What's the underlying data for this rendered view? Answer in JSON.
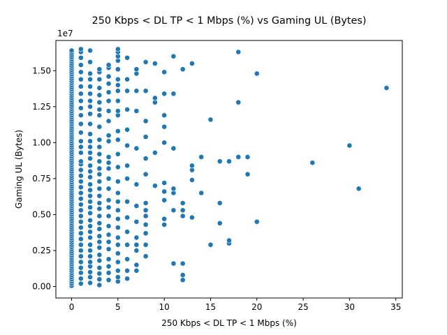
{
  "chart_data": {
    "type": "scatter",
    "title": "250 Kbps < DL TP < 1 Mbps (%) vs Gaming UL (Bytes)",
    "xlabel": "250 Kbps < DL TP < 1 Mbps (%)",
    "ylabel": "Gaming UL (Bytes)",
    "y_offset_label": "1e7",
    "xlim": [
      -1.7,
      35.7
    ],
    "ylim": [
      -800000.0,
      17100000.0
    ],
    "x_ticks": [
      0,
      5,
      10,
      15,
      20,
      25,
      30,
      35
    ],
    "x_tick_labels": [
      "0",
      "5",
      "10",
      "15",
      "20",
      "25",
      "30",
      "35"
    ],
    "y_ticks": [
      0,
      2500000,
      5000000,
      7500000,
      10000000,
      12500000,
      15000000
    ],
    "y_tick_labels": [
      "0.00",
      "0.25",
      "0.50",
      "0.75",
      "1.00",
      "1.25",
      "1.50"
    ],
    "grid": false,
    "point_color": "#1f77b4",
    "points": [
      [
        0,
        50000
      ],
      [
        0,
        200000
      ],
      [
        0,
        350000
      ],
      [
        0,
        500000
      ],
      [
        0,
        650000
      ],
      [
        0,
        800000
      ],
      [
        0,
        950000
      ],
      [
        0,
        1100000
      ],
      [
        0,
        1250000
      ],
      [
        0,
        1400000
      ],
      [
        0,
        1550000
      ],
      [
        0,
        1700000
      ],
      [
        0,
        1850000
      ],
      [
        0,
        2000000
      ],
      [
        0,
        2150000
      ],
      [
        0,
        2300000
      ],
      [
        0,
        2450000
      ],
      [
        0,
        2600000
      ],
      [
        0,
        2750000
      ],
      [
        0,
        2900000
      ],
      [
        0,
        3050000
      ],
      [
        0,
        3200000
      ],
      [
        0,
        3350000
      ],
      [
        0,
        3500000
      ],
      [
        0,
        3650000
      ],
      [
        0,
        3800000
      ],
      [
        0,
        3950000
      ],
      [
        0,
        4100000
      ],
      [
        0,
        4250000
      ],
      [
        0,
        4400000
      ],
      [
        0,
        4550000
      ],
      [
        0,
        4700000
      ],
      [
        0,
        4850000
      ],
      [
        0,
        5000000
      ],
      [
        0,
        5150000
      ],
      [
        0,
        5300000
      ],
      [
        0,
        5450000
      ],
      [
        0,
        5600000
      ],
      [
        0,
        5750000
      ],
      [
        0,
        5900000
      ],
      [
        0,
        6050000
      ],
      [
        0,
        6200000
      ],
      [
        0,
        6350000
      ],
      [
        0,
        6500000
      ],
      [
        0,
        6650000
      ],
      [
        0,
        6800000
      ],
      [
        0,
        6950000
      ],
      [
        0,
        7100000
      ],
      [
        0,
        7250000
      ],
      [
        0,
        7400000
      ],
      [
        0,
        7550000
      ],
      [
        0,
        7700000
      ],
      [
        0,
        7850000
      ],
      [
        0,
        8000000
      ],
      [
        0,
        8150000
      ],
      [
        0,
        8300000
      ],
      [
        0,
        8450000
      ],
      [
        0,
        8600000
      ],
      [
        0,
        8750000
      ],
      [
        0,
        8900000
      ],
      [
        0,
        9050000
      ],
      [
        0,
        9200000
      ],
      [
        0,
        9350000
      ],
      [
        0,
        9500000
      ],
      [
        0,
        9650000
      ],
      [
        0,
        9800000
      ],
      [
        0,
        9950000
      ],
      [
        0,
        10100000
      ],
      [
        0,
        10250000
      ],
      [
        0,
        10400000
      ],
      [
        0,
        10550000
      ],
      [
        0,
        10700000
      ],
      [
        0,
        10850000
      ],
      [
        0,
        11000000
      ],
      [
        0,
        11150000
      ],
      [
        0,
        11300000
      ],
      [
        0,
        11450000
      ],
      [
        0,
        11600000
      ],
      [
        0,
        11750000
      ],
      [
        0,
        11900000
      ],
      [
        0,
        12050000
      ],
      [
        0,
        12200000
      ],
      [
        0,
        12350000
      ],
      [
        0,
        12500000
      ],
      [
        0,
        12650000
      ],
      [
        0,
        12800000
      ],
      [
        0,
        12950000
      ],
      [
        0,
        13100000
      ],
      [
        0,
        13250000
      ],
      [
        0,
        13400000
      ],
      [
        0,
        13550000
      ],
      [
        0,
        13700000
      ],
      [
        0,
        13850000
      ],
      [
        0,
        14000000
      ],
      [
        0,
        14150000
      ],
      [
        0,
        14300000
      ],
      [
        0,
        14450000
      ],
      [
        0,
        14600000
      ],
      [
        0,
        14750000
      ],
      [
        0,
        14900000
      ],
      [
        0,
        15050000
      ],
      [
        0,
        15200000
      ],
      [
        0,
        15350000
      ],
      [
        0,
        15500000
      ],
      [
        0,
        15650000
      ],
      [
        0,
        15800000
      ],
      [
        0,
        15950000
      ],
      [
        0,
        16100000
      ],
      [
        0,
        16250000
      ],
      [
        0,
        16400000
      ],
      [
        1,
        200000
      ],
      [
        1,
        550000
      ],
      [
        1,
        950000
      ],
      [
        1,
        1300000
      ],
      [
        1,
        1700000
      ],
      [
        1,
        2100000
      ],
      [
        1,
        2500000
      ],
      [
        1,
        2900000
      ],
      [
        1,
        3300000
      ],
      [
        1,
        3700000
      ],
      [
        1,
        4100000
      ],
      [
        1,
        4500000
      ],
      [
        1,
        4900000
      ],
      [
        1,
        5300000
      ],
      [
        1,
        5700000
      ],
      [
        1,
        6100000
      ],
      [
        1,
        6500000
      ],
      [
        1,
        6900000
      ],
      [
        1,
        7300000
      ],
      [
        1,
        7700000
      ],
      [
        1,
        8100000
      ],
      [
        1,
        8500000
      ],
      [
        1,
        8700000
      ],
      [
        1,
        9300000
      ],
      [
        1,
        9700000
      ],
      [
        1,
        10100000
      ],
      [
        1,
        10700000
      ],
      [
        1,
        11300000
      ],
      [
        1,
        11900000
      ],
      [
        1,
        12400000
      ],
      [
        1,
        12900000
      ],
      [
        1,
        13400000
      ],
      [
        1,
        13900000
      ],
      [
        1,
        14400000
      ],
      [
        1,
        14900000
      ],
      [
        1,
        15400000
      ],
      [
        1,
        15900000
      ],
      [
        1,
        16300000
      ],
      [
        1,
        16500000
      ],
      [
        2,
        250000
      ],
      [
        2,
        650000
      ],
      [
        2,
        1000000
      ],
      [
        2,
        1400000
      ],
      [
        2,
        1700000
      ],
      [
        2,
        2100000
      ],
      [
        2,
        2500000
      ],
      [
        2,
        2900000
      ],
      [
        2,
        3400000
      ],
      [
        2,
        3800000
      ],
      [
        2,
        4200000
      ],
      [
        2,
        4600000
      ],
      [
        2,
        5100000
      ],
      [
        2,
        5500000
      ],
      [
        2,
        5900000
      ],
      [
        2,
        6300000
      ],
      [
        2,
        6700000
      ],
      [
        2,
        7100000
      ],
      [
        2,
        7600000
      ],
      [
        2,
        8000000
      ],
      [
        2,
        8400000
      ],
      [
        2,
        8900000
      ],
      [
        2,
        9300000
      ],
      [
        2,
        9700000
      ],
      [
        2,
        10100000
      ],
      [
        2,
        10600000
      ],
      [
        2,
        11300000
      ],
      [
        2,
        12000000
      ],
      [
        2,
        12500000
      ],
      [
        2,
        12900000
      ],
      [
        2,
        13400000
      ],
      [
        2,
        13900000
      ],
      [
        2,
        14400000
      ],
      [
        2,
        14800000
      ],
      [
        2,
        15600000
      ],
      [
        2,
        16400000
      ],
      [
        3,
        100000
      ],
      [
        3,
        500000
      ],
      [
        3,
        900000
      ],
      [
        3,
        1300000
      ],
      [
        3,
        1800000
      ],
      [
        3,
        2200000
      ],
      [
        3,
        2700000
      ],
      [
        3,
        3100000
      ],
      [
        3,
        3500000
      ],
      [
        3,
        4000000
      ],
      [
        3,
        4400000
      ],
      [
        3,
        4900000
      ],
      [
        3,
        5400000
      ],
      [
        3,
        5800000
      ],
      [
        3,
        6300000
      ],
      [
        3,
        6800000
      ],
      [
        3,
        7300000
      ],
      [
        3,
        7800000
      ],
      [
        3,
        8200000
      ],
      [
        3,
        8700000
      ],
      [
        3,
        9200000
      ],
      [
        3,
        9700000
      ],
      [
        3,
        10200000
      ],
      [
        3,
        11100000
      ],
      [
        3,
        11900000
      ],
      [
        3,
        12300000
      ],
      [
        3,
        12800000
      ],
      [
        3,
        13300000
      ],
      [
        3,
        13800000
      ],
      [
        3,
        14400000
      ],
      [
        3,
        14900000
      ],
      [
        3,
        15100000
      ],
      [
        4,
        450000
      ],
      [
        4,
        950000
      ],
      [
        4,
        1400000
      ],
      [
        4,
        1900000
      ],
      [
        4,
        2600000
      ],
      [
        4,
        3100000
      ],
      [
        4,
        3600000
      ],
      [
        4,
        4200000
      ],
      [
        4,
        4900000
      ],
      [
        4,
        5500000
      ],
      [
        4,
        6000000
      ],
      [
        4,
        6800000
      ],
      [
        4,
        7500000
      ],
      [
        4,
        8200000
      ],
      [
        4,
        8600000
      ],
      [
        4,
        9000000
      ],
      [
        4,
        10100000
      ],
      [
        4,
        10500000
      ],
      [
        4,
        11500000
      ],
      [
        4,
        12200000
      ],
      [
        4,
        12900000
      ],
      [
        4,
        13500000
      ],
      [
        4,
        14100000
      ],
      [
        4,
        14600000
      ],
      [
        4,
        15200000
      ],
      [
        4,
        15400000
      ],
      [
        5,
        350000
      ],
      [
        5,
        650000
      ],
      [
        5,
        1100000
      ],
      [
        5,
        1700000
      ],
      [
        5,
        2300000
      ],
      [
        5,
        2900000
      ],
      [
        5,
        3400000
      ],
      [
        5,
        4100000
      ],
      [
        5,
        4700000
      ],
      [
        5,
        5300000
      ],
      [
        5,
        5900000
      ],
      [
        5,
        6500000
      ],
      [
        5,
        7300000
      ],
      [
        5,
        8300000
      ],
      [
        5,
        9200000
      ],
      [
        5,
        10200000
      ],
      [
        5,
        10800000
      ],
      [
        5,
        11900000
      ],
      [
        5,
        12200000
      ],
      [
        5,
        12900000
      ],
      [
        5,
        13600000
      ],
      [
        5,
        14000000
      ],
      [
        5,
        14400000
      ],
      [
        5,
        15100000
      ],
      [
        5,
        15700000
      ],
      [
        5,
        16000000
      ],
      [
        5,
        16300000
      ],
      [
        5,
        16500000
      ],
      [
        6,
        550000
      ],
      [
        6,
        1100000
      ],
      [
        6,
        1900000
      ],
      [
        6,
        2900000
      ],
      [
        6,
        3800000
      ],
      [
        6,
        4800000
      ],
      [
        6,
        5900000
      ],
      [
        6,
        7500000
      ],
      [
        6,
        8400000
      ],
      [
        6,
        9800000
      ],
      [
        6,
        10900000
      ],
      [
        6,
        12300000
      ],
      [
        6,
        13600000
      ],
      [
        6,
        14400000
      ],
      [
        6,
        15900000
      ],
      [
        7,
        1100000
      ],
      [
        7,
        1500000
      ],
      [
        7,
        2500000
      ],
      [
        7,
        2900000
      ],
      [
        7,
        3400000
      ],
      [
        7,
        4500000
      ],
      [
        7,
        5600000
      ],
      [
        7,
        7100000
      ],
      [
        7,
        9600000
      ],
      [
        7,
        12200000
      ],
      [
        7,
        13600000
      ],
      [
        7,
        14800000
      ],
      [
        7,
        15100000
      ],
      [
        8,
        2100000
      ],
      [
        8,
        2900000
      ],
      [
        8,
        3700000
      ],
      [
        8,
        4300000
      ],
      [
        8,
        4900000
      ],
      [
        8,
        5300000
      ],
      [
        8,
        5800000
      ],
      [
        8,
        7800000
      ],
      [
        8,
        8900000
      ],
      [
        8,
        10400000
      ],
      [
        8,
        11500000
      ],
      [
        8,
        13600000
      ],
      [
        8,
        15600000
      ],
      [
        9,
        7000000
      ],
      [
        9,
        9300000
      ],
      [
        9,
        12800000
      ],
      [
        9,
        13100000
      ],
      [
        9,
        15500000
      ],
      [
        10,
        4300000
      ],
      [
        10,
        4700000
      ],
      [
        10,
        6000000
      ],
      [
        10,
        6600000
      ],
      [
        10,
        7200000
      ],
      [
        10,
        10000000
      ],
      [
        10,
        11100000
      ],
      [
        10,
        11900000
      ],
      [
        10,
        13400000
      ],
      [
        10,
        14900000
      ],
      [
        11,
        1600000
      ],
      [
        11,
        5300000
      ],
      [
        11,
        6500000
      ],
      [
        11,
        6800000
      ],
      [
        11,
        9600000
      ],
      [
        11,
        13400000
      ],
      [
        11,
        16000000
      ],
      [
        12,
        450000
      ],
      [
        12,
        800000
      ],
      [
        12,
        1600000
      ],
      [
        12,
        4900000
      ],
      [
        12,
        5300000
      ],
      [
        12,
        5800000
      ],
      [
        12,
        15100000
      ],
      [
        13,
        4800000
      ],
      [
        13,
        7400000
      ],
      [
        13,
        8100000
      ],
      [
        13,
        8400000
      ],
      [
        13,
        15500000
      ],
      [
        14,
        6500000
      ],
      [
        14,
        9000000
      ],
      [
        15,
        2900000
      ],
      [
        15,
        11600000
      ],
      [
        16,
        4400000
      ],
      [
        16,
        5800000
      ],
      [
        16,
        8700000
      ],
      [
        17,
        3000000
      ],
      [
        17,
        3200000
      ],
      [
        17,
        8700000
      ],
      [
        18,
        9000000
      ],
      [
        18,
        12800000
      ],
      [
        18,
        16300000
      ],
      [
        19,
        7800000
      ],
      [
        19,
        9000000
      ],
      [
        20,
        4500000
      ],
      [
        20,
        14800000
      ],
      [
        26,
        8600000
      ],
      [
        30,
        9800000
      ],
      [
        31,
        6800000
      ],
      [
        34,
        13800000
      ]
    ]
  }
}
